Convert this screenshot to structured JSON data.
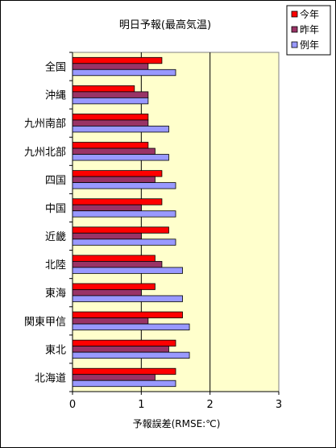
{
  "chart_data": {
    "type": "bar",
    "orientation": "horizontal",
    "title": "明日予報(最高気温)",
    "xlabel": "予報誤差(RMSE:℃)",
    "ylabel": "",
    "xlim": [
      0,
      3
    ],
    "xticks": [
      "0",
      "1",
      "2",
      "3"
    ],
    "grid": "vertical major gridlines",
    "legend_position": "top-right",
    "categories": [
      "全国",
      "沖縄",
      "九州南部",
      "九州北部",
      "四国",
      "中国",
      "近畿",
      "北陸",
      "東海",
      "関東甲信",
      "東北",
      "北海道"
    ],
    "series": [
      {
        "name": "今年",
        "color": "#ff0000",
        "values": [
          1.3,
          0.9,
          1.1,
          1.1,
          1.3,
          1.3,
          1.4,
          1.2,
          1.2,
          1.6,
          1.5,
          1.5
        ]
      },
      {
        "name": "昨年",
        "color": "#993366",
        "values": [
          1.1,
          1.1,
          1.1,
          1.2,
          1.2,
          1.0,
          1.0,
          1.3,
          1.0,
          1.1,
          1.4,
          1.2
        ]
      },
      {
        "name": "例年",
        "color": "#9999ff",
        "values": [
          1.5,
          1.1,
          1.4,
          1.4,
          1.5,
          1.5,
          1.5,
          1.6,
          1.6,
          1.7,
          1.7,
          1.5
        ]
      }
    ]
  },
  "colors": {
    "plot_background": "#ffffcc",
    "gridline": "#000000"
  }
}
